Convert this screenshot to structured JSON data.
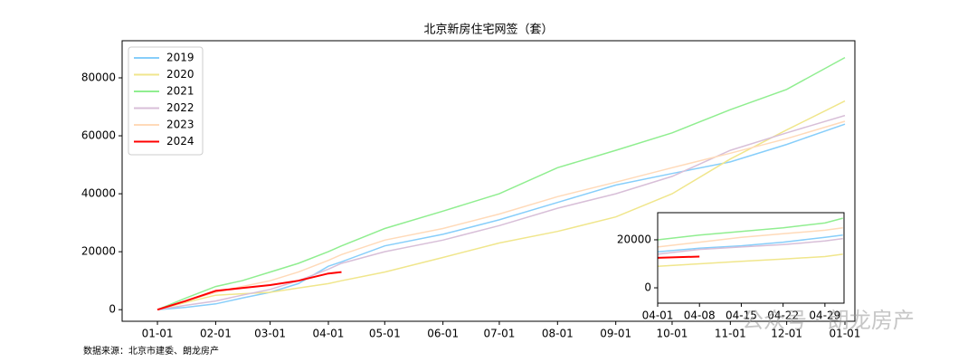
{
  "chart_data": [
    {
      "type": "line",
      "title": "北京新房住宅网签（套）",
      "legend": "upper left",
      "x": [
        0,
        15,
        31,
        45,
        60,
        75,
        91,
        98,
        121,
        152,
        182,
        213,
        244,
        274,
        305,
        335,
        366
      ],
      "xlim": [
        -18.8,
        371.3
      ],
      "xticks": [
        {
          "value": 0,
          "label": "01-01"
        },
        {
          "value": 31,
          "label": "02-01"
        },
        {
          "value": 60,
          "label": "03-01"
        },
        {
          "value": 91,
          "label": "04-01"
        },
        {
          "value": 121,
          "label": "05-01"
        },
        {
          "value": 152,
          "label": "06-01"
        },
        {
          "value": 182,
          "label": "07-01"
        },
        {
          "value": 213,
          "label": "08-01"
        },
        {
          "value": 244,
          "label": "09-01"
        },
        {
          "value": 274,
          "label": "10-01"
        },
        {
          "value": 305,
          "label": "11-01"
        },
        {
          "value": 335,
          "label": "12-01"
        },
        {
          "value": 366,
          "label": "01-01"
        }
      ],
      "ylim": [
        -4000,
        92800
      ],
      "yticks": [
        0,
        20000,
        40000,
        60000,
        80000
      ],
      "series": [
        {
          "name": "2019",
          "color": "#87cefa",
          "values": [
            0,
            800,
            2000,
            4000,
            6000,
            9000,
            15000,
            16500,
            22000,
            26000,
            31000,
            37000,
            43000,
            47000,
            51000,
            57000,
            64000
          ]
        },
        {
          "name": "2020",
          "color": "#f0e68c",
          "values": [
            0,
            2500,
            5000,
            5500,
            6000,
            7500,
            9000,
            10000,
            13000,
            18000,
            23000,
            27000,
            32000,
            40000,
            52000,
            62000,
            72000
          ]
        },
        {
          "name": "2021",
          "color": "#90ee90",
          "values": [
            0,
            4000,
            8000,
            10000,
            13000,
            16000,
            20000,
            22000,
            28000,
            34000,
            40000,
            49000,
            55000,
            61000,
            69000,
            76000,
            87000
          ]
        },
        {
          "name": "2022",
          "color": "#d8bfd8",
          "values": [
            0,
            1500,
            3000,
            5000,
            7000,
            10000,
            14000,
            16000,
            20000,
            24000,
            29000,
            35000,
            40000,
            46000,
            55000,
            61000,
            67000
          ]
        },
        {
          "name": "2023",
          "color": "#ffdab9",
          "values": [
            0,
            3000,
            6000,
            8000,
            10000,
            13000,
            17000,
            19000,
            24000,
            28000,
            33000,
            39000,
            44000,
            49000,
            54000,
            59000,
            65000
          ]
        },
        {
          "name": "2024",
          "color": "#ff0000",
          "values": [
            0,
            3000,
            6500,
            7500,
            8500,
            10000,
            12500,
            13000,
            null,
            null,
            null,
            null,
            null,
            null,
            null,
            null,
            null
          ]
        }
      ]
    },
    {
      "type": "line",
      "x": [
        91,
        98,
        105,
        112,
        119,
        122
      ],
      "xlim": [
        91,
        122.2
      ],
      "xticks": [
        {
          "value": 91,
          "label": "04-01"
        },
        {
          "value": 98,
          "label": "04-08"
        },
        {
          "value": 105,
          "label": "04-15"
        },
        {
          "value": 112,
          "label": "04-22"
        },
        {
          "value": 119,
          "label": "04-29"
        }
      ],
      "ylim": [
        -6400,
        31300
      ],
      "yticks": [
        0,
        20000
      ],
      "series": [
        {
          "color": "#87cefa",
          "values": [
            15000,
            16500,
            17500,
            19000,
            21000,
            22000
          ]
        },
        {
          "color": "#f0e68c",
          "values": [
            9000,
            10000,
            11000,
            12000,
            13000,
            14000
          ]
        },
        {
          "color": "#90ee90",
          "values": [
            20000,
            22000,
            23500,
            25000,
            27000,
            29000
          ]
        },
        {
          "color": "#d8bfd8",
          "values": [
            14000,
            16000,
            17000,
            18000,
            19500,
            20500
          ]
        },
        {
          "color": "#ffdab9",
          "values": [
            17000,
            19000,
            21000,
            22500,
            24000,
            25000
          ]
        },
        {
          "color": "#ff0000",
          "values": [
            12500,
            13000,
            null,
            null,
            null,
            null
          ]
        }
      ]
    }
  ],
  "source": "数据来源：北京市建委、朗龙房产",
  "watermark": "公众号 · 朗龙房产"
}
